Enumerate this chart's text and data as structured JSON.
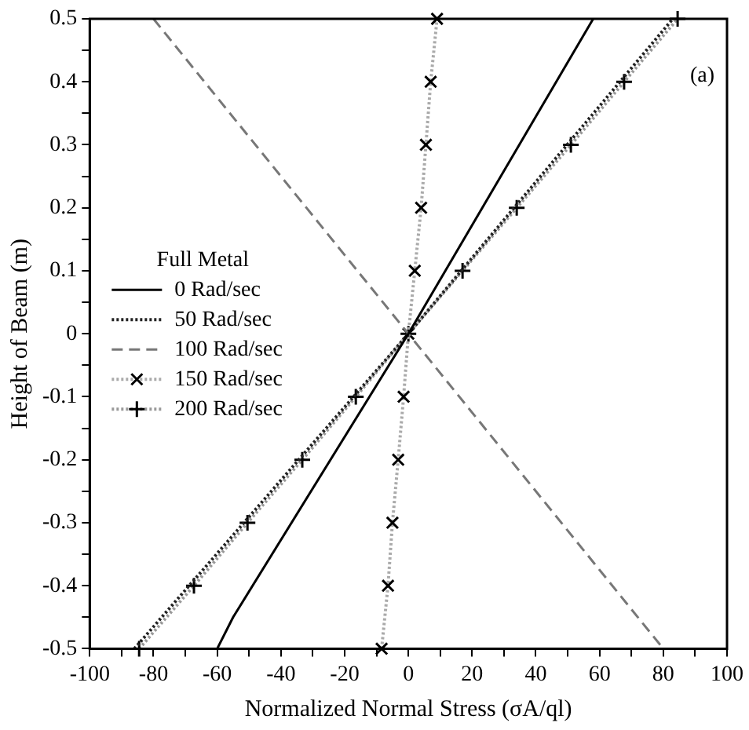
{
  "chart_data": {
    "type": "line",
    "xlabel": "Normalized Normal Stress (σA/ql)",
    "ylabel": "Height of Beam (m)",
    "legend_title": "Full Metal",
    "legend": "left",
    "grid": false,
    "annotations": [
      "(a)"
    ],
    "xlim": [
      -100,
      100
    ],
    "ylim": [
      -0.5,
      0.5
    ],
    "xticks": [
      -100,
      {
        "value": -90,
        "label": null
      },
      -80,
      {
        "value": -70,
        "label": null
      },
      -60,
      {
        "value": -50,
        "label": null
      },
      -40,
      {
        "value": -30,
        "label": null
      },
      -20,
      {
        "value": -10,
        "label": null
      },
      0,
      {
        "value": 10,
        "label": null
      },
      20,
      {
        "value": 30,
        "label": null
      },
      40,
      {
        "value": 50,
        "label": null
      },
      60,
      {
        "value": 70,
        "label": null
      },
      80,
      {
        "value": 90,
        "label": null
      },
      100
    ],
    "yticks": [
      -0.5,
      {
        "value": -0.45,
        "label": null
      },
      -0.4,
      {
        "value": -0.35,
        "label": null
      },
      -0.3,
      {
        "value": -0.25,
        "label": null
      },
      -0.2,
      {
        "value": -0.15,
        "label": null
      },
      -0.1,
      {
        "value": -0.05,
        "label": null
      },
      0,
      {
        "value": 0.05,
        "label": null
      },
      0.1,
      {
        "value": 0.15,
        "label": null
      },
      0.2,
      {
        "value": 0.25,
        "label": null
      },
      0.3,
      {
        "value": 0.35,
        "label": null
      },
      0.4,
      {
        "value": 0.45,
        "label": null
      },
      0.5
    ],
    "series": [
      {
        "name": "0 Rad/sec",
        "color": "#000000",
        "line_style": "solid",
        "marker": "none",
        "x": [
          -60,
          -55,
          0,
          58
        ],
        "values": [
          -0.5,
          -0.45,
          0,
          0.5
        ]
      },
      {
        "name": "50 Rad/sec",
        "color": "#222222",
        "line_style": "dotted",
        "marker": "none",
        "x": [
          -86,
          0,
          83
        ],
        "values": [
          -0.5,
          0,
          0.5
        ]
      },
      {
        "name": "100 Rad/sec",
        "color": "#777777",
        "line_style": "dashed",
        "marker": "none",
        "x": [
          -80,
          0,
          80
        ],
        "values": [
          0.5,
          0,
          -0.5
        ]
      },
      {
        "name": "150 Rad/sec",
        "color": "#aaaaaa",
        "line_style": "dotted",
        "marker": "cross",
        "x": [
          -8.4,
          -6.4,
          -5,
          -3.2,
          -1.5,
          0,
          2,
          4,
          5.5,
          7,
          9
        ],
        "values": [
          -0.5,
          -0.4,
          -0.3,
          -0.2,
          -0.1,
          0,
          0.1,
          0.2,
          0.3,
          0.4,
          0.5
        ]
      },
      {
        "name": "200 Rad/sec",
        "color": "#999999",
        "line_style": "dotted",
        "marker": "plus",
        "x": [
          -84.5,
          -67.3,
          -50.5,
          -33.3,
          -16.5,
          0,
          17,
          34,
          51,
          67.7,
          84.5
        ],
        "values": [
          -0.5,
          -0.4,
          -0.3,
          -0.2,
          -0.1,
          0,
          0.1,
          0.2,
          0.3,
          0.4,
          0.5
        ]
      }
    ]
  }
}
